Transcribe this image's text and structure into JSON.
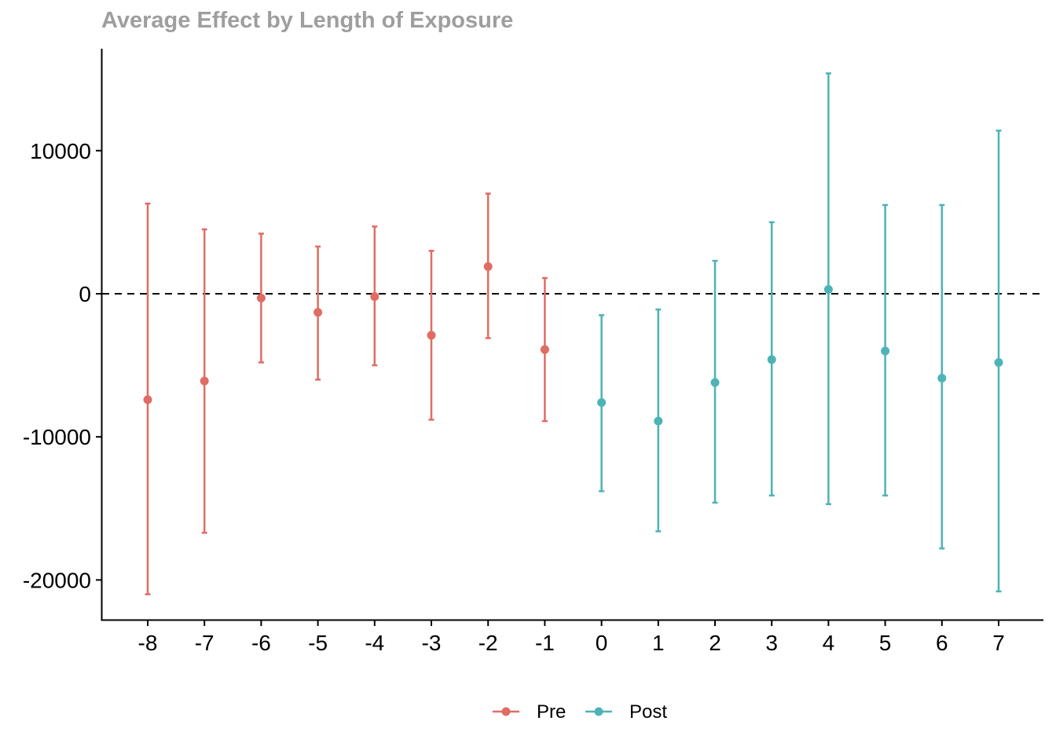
{
  "chart_data": {
    "type": "scatter",
    "title": "Average Effect by Length of Exposure",
    "xlabel": "",
    "ylabel": "",
    "x_ticks": [
      "-8",
      "-7",
      "-6",
      "-5",
      "-4",
      "-3",
      "-2",
      "-1",
      "0",
      "1",
      "2",
      "3",
      "4",
      "5",
      "6",
      "7"
    ],
    "y_ticks": [
      10000,
      0,
      -10000,
      -20000
    ],
    "ylim": [
      -22800,
      17000
    ],
    "reference_line": {
      "y": 0,
      "style": "dashed",
      "color": "#000000"
    },
    "legend": {
      "placement": "bottom",
      "entries": [
        "Pre",
        "Post"
      ]
    },
    "series": [
      {
        "name": "Pre",
        "color": "#E06C63",
        "points": [
          {
            "x": -8,
            "y": -7400,
            "lo": -21000,
            "hi": 6300
          },
          {
            "x": -7,
            "y": -6100,
            "lo": -16700,
            "hi": 4500
          },
          {
            "x": -6,
            "y": -300,
            "lo": -4800,
            "hi": 4200
          },
          {
            "x": -5,
            "y": -1300,
            "lo": -6000,
            "hi": 3300
          },
          {
            "x": -4,
            "y": -200,
            "lo": -5000,
            "hi": 4700
          },
          {
            "x": -3,
            "y": -2900,
            "lo": -8800,
            "hi": 3000
          },
          {
            "x": -2,
            "y": 1900,
            "lo": -3100,
            "hi": 7000
          },
          {
            "x": -1,
            "y": -3900,
            "lo": -8900,
            "hi": 1100
          }
        ]
      },
      {
        "name": "Post",
        "color": "#4DB3B6",
        "points": [
          {
            "x": 0,
            "y": -7600,
            "lo": -13800,
            "hi": -1500
          },
          {
            "x": 1,
            "y": -8900,
            "lo": -16600,
            "hi": -1100
          },
          {
            "x": 2,
            "y": -6200,
            "lo": -14600,
            "hi": 2300
          },
          {
            "x": 3,
            "y": -4600,
            "lo": -14100,
            "hi": 5000
          },
          {
            "x": 4,
            "y": 300,
            "lo": -14700,
            "hi": 15400
          },
          {
            "x": 5,
            "y": -4000,
            "lo": -14100,
            "hi": 6200
          },
          {
            "x": 6,
            "y": -5900,
            "lo": -17800,
            "hi": 6200
          },
          {
            "x": 7,
            "y": -4800,
            "lo": -20800,
            "hi": 11400
          }
        ]
      }
    ]
  }
}
